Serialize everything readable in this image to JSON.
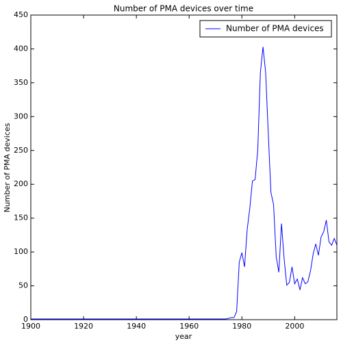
{
  "chart_data": {
    "type": "line",
    "title": "Number of PMA devices over time",
    "xlabel": "year",
    "ylabel": "Number of PMA devices",
    "x": [
      1900,
      1910,
      1920,
      1930,
      1940,
      1950,
      1960,
      1970,
      1971,
      1972,
      1973,
      1974,
      1975,
      1976,
      1977,
      1978,
      1979,
      1980,
      1981,
      1982,
      1983,
      1984,
      1985,
      1986,
      1987,
      1988,
      1989,
      1990,
      1991,
      1992,
      1993,
      1994,
      1995,
      1996,
      1997,
      1998,
      1999,
      2000,
      2001,
      2002,
      2003,
      2004,
      2005,
      2006,
      2007,
      2008,
      2009,
      2010,
      2011,
      2012,
      2013,
      2014,
      2015,
      2016
    ],
    "series": [
      {
        "name": "Number of PMA devices",
        "color": "#0000ff",
        "values": [
          1,
          1,
          1,
          1,
          1,
          1,
          1,
          1,
          1,
          1,
          1,
          1,
          2,
          3,
          3,
          12,
          85,
          99,
          78,
          133,
          165,
          205,
          207,
          250,
          365,
          403,
          365,
          275,
          188,
          170,
          93,
          70,
          142,
          90,
          51,
          55,
          78,
          53,
          60,
          44,
          62,
          53,
          56,
          72,
          97,
          112,
          95,
          122,
          130,
          147,
          115,
          110,
          120,
          110
        ]
      }
    ],
    "xlim": [
      1900,
      2016
    ],
    "xticks": [
      1900,
      1920,
      1940,
      1960,
      1980,
      2000
    ],
    "ylim": [
      0,
      450
    ],
    "yticks": [
      0,
      50,
      100,
      150,
      200,
      250,
      300,
      350,
      400,
      450
    ],
    "legend": "upper right"
  }
}
